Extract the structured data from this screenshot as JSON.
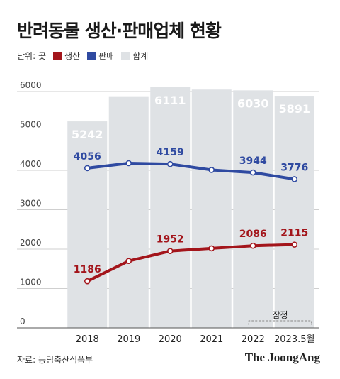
{
  "title": "반려동물 생산·판매업체 현황",
  "unit": "단위: 곳",
  "source": "자료: 농림축산식품부",
  "brand": "The JoongAng",
  "provisional_label": "잠정",
  "colors": {
    "total": "#dfe2e5",
    "production": "#a3151b",
    "sales": "#2f4aa1",
    "axis_text": "#444444",
    "grid": "#cfcfcf"
  },
  "chart_data": {
    "type": "bar",
    "categories": [
      "2018",
      "2019",
      "2020",
      "2021",
      "2022",
      "2023.5월"
    ],
    "ylim": [
      0,
      6500
    ],
    "yticks": [
      0,
      1000,
      2000,
      3000,
      4000,
      5000,
      6000
    ],
    "series": [
      {
        "name": "합계",
        "type": "bar",
        "values": [
          5242,
          5880,
          6111,
          6050,
          6030,
          5891
        ],
        "labeled": [
          true,
          false,
          true,
          false,
          true,
          true
        ]
      },
      {
        "name": "판매",
        "type": "line",
        "values": [
          4056,
          4180,
          4159,
          4010,
          3944,
          3776
        ],
        "labeled": [
          true,
          false,
          true,
          false,
          true,
          true
        ]
      },
      {
        "name": "생산",
        "type": "line",
        "values": [
          1186,
          1700,
          1952,
          2020,
          2086,
          2115
        ],
        "labeled": [
          true,
          false,
          true,
          false,
          true,
          true
        ]
      }
    ]
  }
}
